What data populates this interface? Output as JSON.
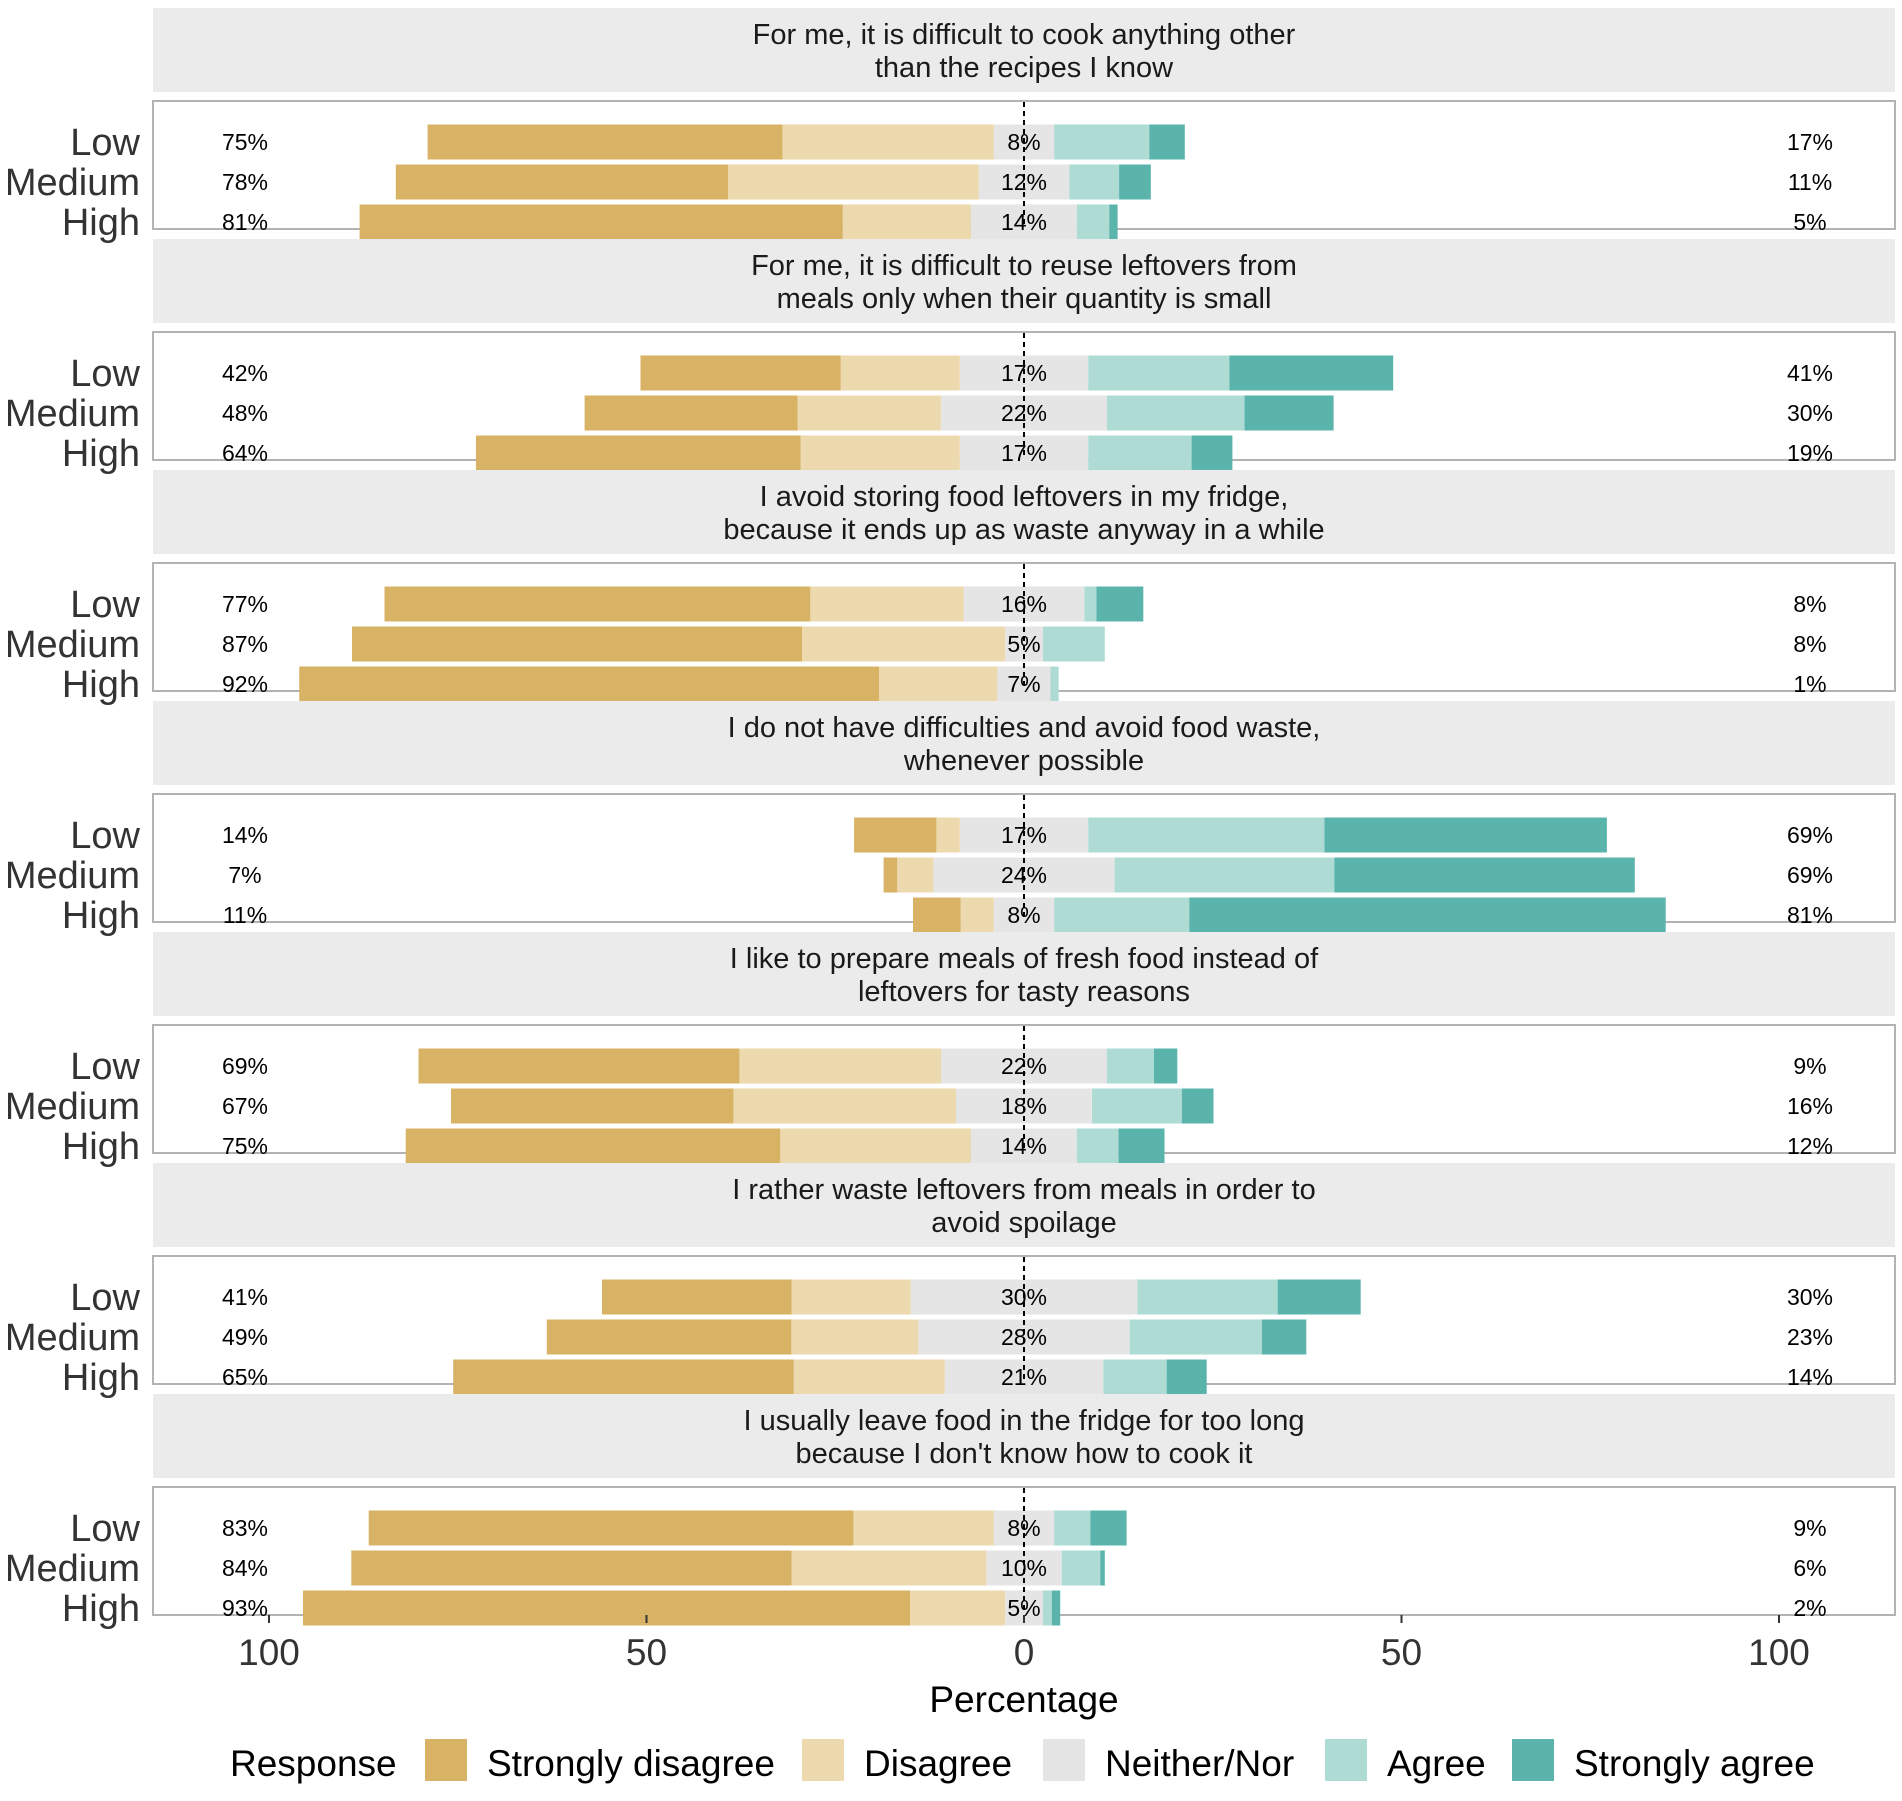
{
  "chart_data": {
    "type": "diverging-stacked-bar",
    "xlabel": "Percentage",
    "x_ticks": [
      100,
      50,
      0,
      50,
      100
    ],
    "legend": {
      "title": "Response",
      "levels": [
        "Strongly disagree",
        "Disagree",
        "Neither/Nor",
        "Agree",
        "Strongly agree"
      ],
      "colors": [
        "#d8b365",
        "#ecd9ad",
        "#e5e5e5",
        "#aedcd4",
        "#5ab4ac"
      ]
    },
    "groups": [
      "Low",
      "Medium",
      "High"
    ],
    "panels": [
      {
        "title_lines": [
          "For me, it is difficult to cook anything other",
          "than the recipes I know"
        ],
        "rows": [
          {
            "group": "Low",
            "values": [
              47,
              28,
              8,
              12.6,
              4.7
            ],
            "left_pct": "75%",
            "neutral_pct": "8%",
            "right_pct": "17%"
          },
          {
            "group": "Medium",
            "values": [
              44,
              33.2,
              12,
              6.6,
              4.2
            ],
            "left_pct": "78%",
            "neutral_pct": "12%",
            "right_pct": "11%"
          },
          {
            "group": "High",
            "values": [
              64,
              17,
              14,
              4.3,
              1.1
            ],
            "left_pct": "81%",
            "neutral_pct": "14%",
            "right_pct": "5%"
          }
        ]
      },
      {
        "title_lines": [
          "For me, it is difficult to reuse leftovers from",
          "meals only when their quantity is small"
        ],
        "rows": [
          {
            "group": "Low",
            "values": [
              26.5,
              15.8,
              17,
              18.7,
              21.7
            ],
            "left_pct": "42%",
            "neutral_pct": "17%",
            "right_pct": "41%"
          },
          {
            "group": "Medium",
            "values": [
              28.2,
              19,
              22,
              18.2,
              11.8
            ],
            "left_pct": "48%",
            "neutral_pct": "22%",
            "right_pct": "30%"
          },
          {
            "group": "High",
            "values": [
              43,
              21.1,
              17,
              13.7,
              5.4
            ],
            "left_pct": "64%",
            "neutral_pct": "17%",
            "right_pct": "19%"
          }
        ]
      },
      {
        "title_lines": [
          "I avoid storing food leftovers in my fridge,",
          "because it ends up as waste anyway in a while"
        ],
        "rows": [
          {
            "group": "Low",
            "values": [
              56.4,
              20.3,
              16,
              1.6,
              6.2
            ],
            "left_pct": "77%",
            "neutral_pct": "16%",
            "right_pct": "8%"
          },
          {
            "group": "Medium",
            "values": [
              59.6,
              26.9,
              5,
              8.2,
              0
            ],
            "left_pct": "87%",
            "neutral_pct": "5%",
            "right_pct": "8%"
          },
          {
            "group": "High",
            "values": [
              76.8,
              15.7,
              7,
              1.1,
              0
            ],
            "left_pct": "92%",
            "neutral_pct": "7%",
            "right_pct": "1%"
          }
        ]
      },
      {
        "title_lines": [
          "I do not have difficulties and avoid food waste,",
          "whenever possible"
        ],
        "rows": [
          {
            "group": "Low",
            "values": [
              10.9,
              3.1,
              17,
              31.3,
              37.4
            ],
            "left_pct": "14%",
            "neutral_pct": "17%",
            "right_pct": "69%"
          },
          {
            "group": "Medium",
            "values": [
              1.8,
              4.8,
              24,
              29.1,
              39.8
            ],
            "left_pct": "7%",
            "neutral_pct": "24%",
            "right_pct": "69%"
          },
          {
            "group": "High",
            "values": [
              6.3,
              4.4,
              8,
              17.9,
              63.1
            ],
            "left_pct": "11%",
            "neutral_pct": "8%",
            "right_pct": "81%"
          }
        ]
      },
      {
        "title_lines": [
          "I like to prepare meals of fresh food instead of",
          "leftovers for tasty reasons"
        ],
        "rows": [
          {
            "group": "Low",
            "values": [
              42.5,
              26.7,
              22,
              6.2,
              3.1
            ],
            "left_pct": "69%",
            "neutral_pct": "22%",
            "right_pct": "9%"
          },
          {
            "group": "Medium",
            "values": [
              37.4,
              29.5,
              18,
              11.9,
              4.2
            ],
            "left_pct": "67%",
            "neutral_pct": "18%",
            "right_pct": "16%"
          },
          {
            "group": "High",
            "values": [
              49.6,
              25.3,
              14,
              5.5,
              6.1
            ],
            "left_pct": "75%",
            "neutral_pct": "14%",
            "right_pct": "12%"
          }
        ]
      },
      {
        "title_lines": [
          "I rather waste leftovers from meals in order to",
          "avoid spoilage"
        ],
        "rows": [
          {
            "group": "Low",
            "values": [
              25.1,
              15.8,
              30,
              18.6,
              11
            ],
            "left_pct": "41%",
            "neutral_pct": "30%",
            "right_pct": "30%"
          },
          {
            "group": "Medium",
            "values": [
              32.4,
              16.8,
              28,
              17.5,
              5.9
            ],
            "left_pct": "49%",
            "neutral_pct": "28%",
            "right_pct": "23%"
          },
          {
            "group": "High",
            "values": [
              45.1,
              20,
              21,
              8.4,
              5.3
            ],
            "left_pct": "65%",
            "neutral_pct": "21%",
            "right_pct": "14%"
          }
        ]
      },
      {
        "title_lines": [
          "I usually leave food in the fridge for too long",
          "because I don't know how to cook it"
        ],
        "rows": [
          {
            "group": "Low",
            "values": [
              64.2,
              18.6,
              8,
              4.8,
              4.8
            ],
            "left_pct": "83%",
            "neutral_pct": "8%",
            "right_pct": "9%"
          },
          {
            "group": "Medium",
            "values": [
              58.3,
              25.8,
              10,
              5.1,
              0.6
            ],
            "left_pct": "84%",
            "neutral_pct": "10%",
            "right_pct": "6%"
          },
          {
            "group": "High",
            "values": [
              80.4,
              12.6,
              5,
              1.2,
              1.1
            ],
            "left_pct": "93%",
            "neutral_pct": "5%",
            "right_pct": "2%"
          }
        ]
      }
    ]
  }
}
